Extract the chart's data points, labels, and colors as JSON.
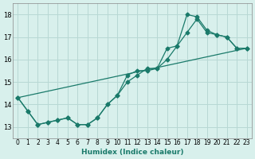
{
  "xlabel": "Humidex (Indice chaleur)",
  "background_color": "#d8f0ec",
  "grid_color": "#b8d8d4",
  "line_color": "#1a7a6a",
  "xlim": [
    -0.5,
    23.5
  ],
  "ylim": [
    12.5,
    18.5
  ],
  "xticks": [
    0,
    1,
    2,
    3,
    4,
    5,
    6,
    7,
    8,
    9,
    10,
    11,
    12,
    13,
    14,
    15,
    16,
    17,
    18,
    19,
    20,
    21,
    22,
    23
  ],
  "yticks": [
    13,
    14,
    15,
    16,
    17,
    18
  ],
  "series1_x": [
    0,
    1,
    2,
    3,
    4,
    5,
    6,
    7,
    8,
    9,
    10,
    11,
    12,
    13,
    14,
    15,
    16,
    17,
    18,
    19,
    20,
    21,
    22,
    23
  ],
  "series1_y": [
    14.3,
    13.7,
    13.1,
    13.2,
    13.3,
    13.4,
    13.1,
    13.1,
    13.4,
    14.0,
    14.4,
    15.0,
    15.3,
    15.6,
    15.6,
    16.0,
    16.6,
    17.2,
    17.8,
    17.2,
    17.1,
    17.0,
    16.5,
    16.5
  ],
  "series2_x": [
    0,
    1,
    2,
    3,
    4,
    5,
    6,
    7,
    8,
    9,
    10,
    11,
    12,
    13,
    14,
    15,
    16,
    17,
    18,
    19,
    20,
    21,
    22,
    23
  ],
  "series2_y": [
    14.3,
    13.7,
    13.1,
    13.2,
    13.3,
    13.4,
    13.1,
    13.1,
    13.4,
    14.0,
    14.4,
    15.3,
    15.5,
    15.5,
    15.6,
    16.5,
    16.6,
    18.0,
    17.9,
    17.3,
    17.1,
    17.0,
    16.5,
    16.5
  ],
  "series3_x": [
    0,
    23
  ],
  "series3_y": [
    14.3,
    16.5
  ]
}
